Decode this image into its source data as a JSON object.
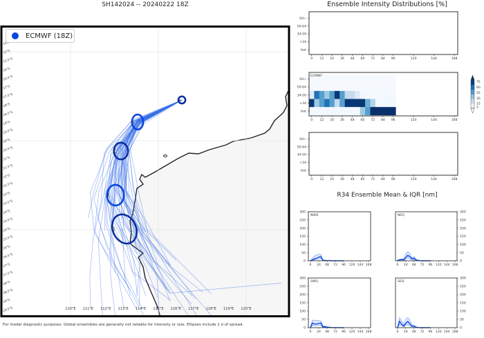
{
  "title": "SH142024 -- 20240222 18Z",
  "right_title": "Ensemble Intensity Distributions [%]",
  "r34_title": "R34 Ensemble Mean & IQR [nm]",
  "footer": "For model diagnostic purposes. Global ensembles are generally not reliable for intensity or size. Ellipses include 1 σ of spread.",
  "colors": {
    "ensemble": "#0a47e0",
    "track": "#3a6fe8",
    "land": "#f6f6f6",
    "coast": "#222222"
  },
  "chart_data": [
    {
      "type": "map",
      "legend": {
        "label": "ECMWF (18Z)",
        "placement": "top-left"
      },
      "lon_ticks": [
        "110°E",
        "111°E",
        "112°E",
        "113°E",
        "114°E",
        "115°E",
        "116°E",
        "117°E",
        "118°E",
        "119°E",
        "120°E"
      ],
      "lat_ticks": [
        "14.5°S",
        "15°S",
        "15.5°S",
        "16°S",
        "16.5°S",
        "17°S",
        "17.5°S",
        "18°S",
        "18.5°S",
        "19°S",
        "19.5°S",
        "20°S",
        "20.5°S",
        "21°S",
        "21.5°S",
        "22°S",
        "22.5°S",
        "23°S",
        "23.5°S",
        "24°S",
        "24.5°S",
        "25°S",
        "25.5°S",
        "26°S",
        "26.5°S",
        "27°S",
        "27.5°S",
        "28°S",
        "28.5°S",
        "29°S",
        "29.5°S"
      ],
      "ellipses": [
        {
          "label": "0",
          "lon": 116.34,
          "lat": -17.71,
          "lon_sd": 0.2,
          "lat_sd": 0.2
        },
        {
          "label": "12",
          "lon": 113.82,
          "lat": -18.95,
          "lon_sd": 0.32,
          "lat_sd": 0.42
        },
        {
          "label": "24",
          "lon": 112.87,
          "lat": -20.58,
          "lon_sd": 0.4,
          "lat_sd": 0.47
        },
        {
          "label": "36",
          "lon": 112.56,
          "lat": -23.06,
          "lon_sd": 0.48,
          "lat_sd": 0.58
        },
        {
          "label": "48",
          "lon": 113.07,
          "lat": -24.96,
          "lon_sd": 0.66,
          "lat_sd": 0.85
        }
      ],
      "mean_track": [
        [
          116.34,
          -17.71
        ],
        [
          113.82,
          -18.95
        ],
        [
          112.87,
          -20.58
        ],
        [
          112.56,
          -23.06
        ],
        [
          113.07,
          -24.96
        ],
        [
          113.9,
          -27.0
        ],
        [
          114.8,
          -29.0
        ]
      ]
    },
    {
      "type": "heatmap",
      "panel": "empty-top",
      "rows": [
        "64+",
        "50-64",
        "34-50",
        "<34",
        "lost"
      ],
      "x_ticks": [
        0,
        12,
        24,
        36,
        48,
        60,
        72,
        84,
        96,
        120,
        144,
        168
      ],
      "cells": []
    },
    {
      "type": "heatmap",
      "panel": "ECMWF",
      "label": "ECMWF",
      "rows": [
        "64+",
        "50-64",
        "34-50",
        "<34",
        "lost"
      ],
      "x_ticks": [
        0,
        12,
        24,
        36,
        48,
        60,
        72,
        84,
        96,
        120,
        144,
        168
      ],
      "hours": [
        0,
        6,
        12,
        18,
        24,
        30,
        36,
        42,
        48,
        54,
        60,
        66,
        72,
        78,
        84,
        90,
        96
      ],
      "values": {
        "64+": [
          1,
          1,
          1,
          1,
          1,
          1,
          1,
          1,
          1,
          1,
          1,
          1,
          1,
          1,
          1,
          1,
          1
        ],
        "50-64": [
          1,
          1,
          1,
          1,
          1,
          1,
          1,
          1,
          1,
          1,
          1,
          1,
          1,
          1,
          1,
          1,
          1
        ],
        "34-50": [
          10,
          60,
          45,
          30,
          45,
          78,
          45,
          20,
          20,
          10,
          2,
          2,
          2,
          2,
          2,
          2,
          2
        ],
        "<34": [
          78,
          30,
          45,
          60,
          45,
          20,
          45,
          78,
          78,
          78,
          78,
          40,
          25,
          2,
          2,
          2,
          2
        ],
        "lost": [
          2,
          2,
          2,
          2,
          2,
          2,
          2,
          2,
          2,
          2,
          30,
          45,
          80,
          80,
          80,
          80,
          80
        ]
      },
      "colorbar": {
        "ticks": [
          5,
          15,
          30,
          45,
          60,
          75
        ],
        "colormap": "Blues"
      }
    },
    {
      "type": "heatmap",
      "panel": "empty-bottom",
      "rows": [
        "64+",
        "50-64",
        "34-50",
        "<34",
        "lost"
      ],
      "x_ticks": [
        0,
        12,
        24,
        36,
        48,
        60,
        72,
        84,
        96,
        120,
        144,
        168
      ],
      "cells": []
    },
    {
      "type": "line",
      "quadrants": [
        {
          "label": "NWQ",
          "mean": [
            0,
            5,
            12,
            15,
            22,
            25,
            3,
            2,
            1,
            1,
            0,
            0,
            0,
            0,
            0,
            0,
            0
          ],
          "upper": [
            2,
            15,
            30,
            35,
            40,
            38,
            5,
            3,
            2,
            1,
            1,
            0,
            0,
            0,
            0,
            0,
            0
          ],
          "lower": [
            0,
            2,
            6,
            8,
            12,
            14,
            1,
            0,
            0,
            0,
            0,
            0,
            0,
            0,
            0,
            0,
            0
          ]
        },
        {
          "label": "NEQ",
          "mean": [
            3,
            5,
            8,
            5,
            20,
            33,
            25,
            12,
            15,
            5,
            2,
            1,
            0,
            0,
            0,
            0,
            0
          ],
          "upper": [
            5,
            8,
            10,
            10,
            40,
            55,
            45,
            15,
            25,
            8,
            3,
            1,
            0,
            0,
            0,
            0,
            0
          ],
          "lower": [
            0,
            2,
            4,
            2,
            8,
            18,
            12,
            5,
            6,
            2,
            0,
            0,
            0,
            0,
            0,
            0,
            0
          ]
        },
        {
          "label": "SWQ",
          "mean": [
            0,
            28,
            22,
            22,
            25,
            28,
            5,
            5,
            3,
            2,
            1,
            0,
            0,
            0,
            0,
            0,
            0
          ],
          "upper": [
            5,
            45,
            45,
            42,
            42,
            40,
            12,
            10,
            5,
            3,
            2,
            0,
            0,
            0,
            0,
            0,
            0
          ],
          "lower": [
            0,
            15,
            12,
            12,
            14,
            15,
            2,
            2,
            1,
            0,
            0,
            0,
            0,
            0,
            0,
            0,
            0
          ]
        },
        {
          "label": "SEQ",
          "mean": [
            0,
            38,
            20,
            10,
            25,
            38,
            22,
            10,
            10,
            3,
            1,
            0,
            0,
            0,
            0,
            0,
            0
          ],
          "upper": [
            5,
            60,
            40,
            15,
            50,
            60,
            45,
            15,
            12,
            5,
            2,
            0,
            0,
            0,
            0,
            0,
            0
          ],
          "lower": [
            0,
            20,
            10,
            5,
            12,
            20,
            10,
            4,
            4,
            1,
            0,
            0,
            0,
            0,
            0,
            0,
            0
          ]
        }
      ],
      "hours": [
        0,
        6,
        12,
        18,
        24,
        30,
        36,
        42,
        48,
        54,
        60,
        66,
        72,
        78,
        84,
        90,
        96
      ],
      "x_ticks": [
        0,
        24,
        48,
        72,
        96,
        120,
        144,
        168
      ],
      "y_ticks": [
        0,
        50,
        100,
        150,
        200,
        250,
        300
      ],
      "ylim": [
        0,
        300
      ]
    }
  ]
}
